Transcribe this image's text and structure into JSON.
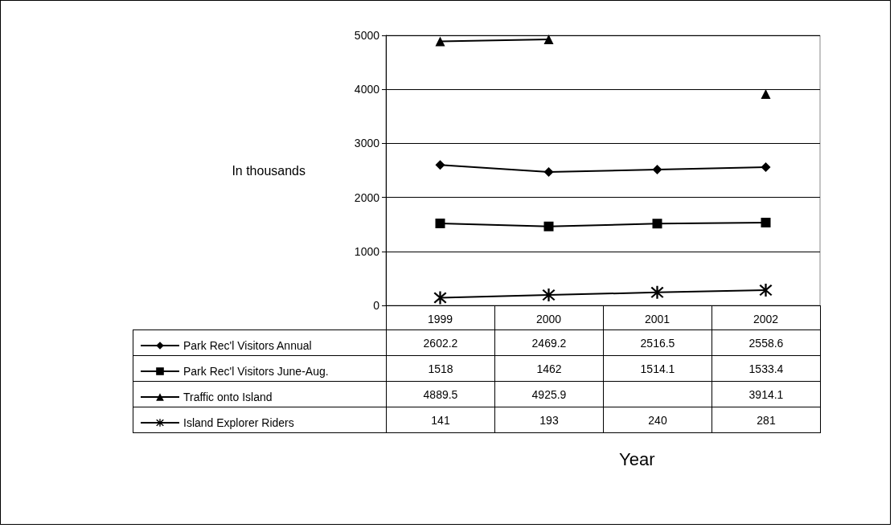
{
  "chart_data": {
    "type": "line",
    "annotations": [
      "Year"
    ],
    "ylabel": "In thousands",
    "categories": [
      "1999",
      "2000",
      "2001",
      "2002"
    ],
    "series": [
      {
        "name": "Park Rec'l Visitors Annual",
        "color": "#000000",
        "marker": "diamond",
        "values": [
          2602.2,
          2469.2,
          2516.5,
          2558.6
        ]
      },
      {
        "name": "Park Rec'l Visitors June-Aug.",
        "color": "#000000",
        "marker": "square",
        "values": [
          1518,
          1462,
          1514.1,
          1533.4
        ]
      },
      {
        "name": "Traffic onto Island",
        "color": "#000000",
        "marker": "triangle",
        "values": [
          4889.5,
          4925.9,
          null,
          3914.1
        ]
      },
      {
        "name": "Island Explorer Riders",
        "color": "#000000",
        "marker": "cross",
        "values": [
          141,
          193,
          240,
          281
        ]
      }
    ],
    "ylim": [
      0,
      5000
    ],
    "yticks": [
      0,
      1000,
      2000,
      3000,
      4000,
      5000
    ],
    "grid": "y",
    "legend": "bottom",
    "data_labels": true,
    "line_style": "solid"
  }
}
